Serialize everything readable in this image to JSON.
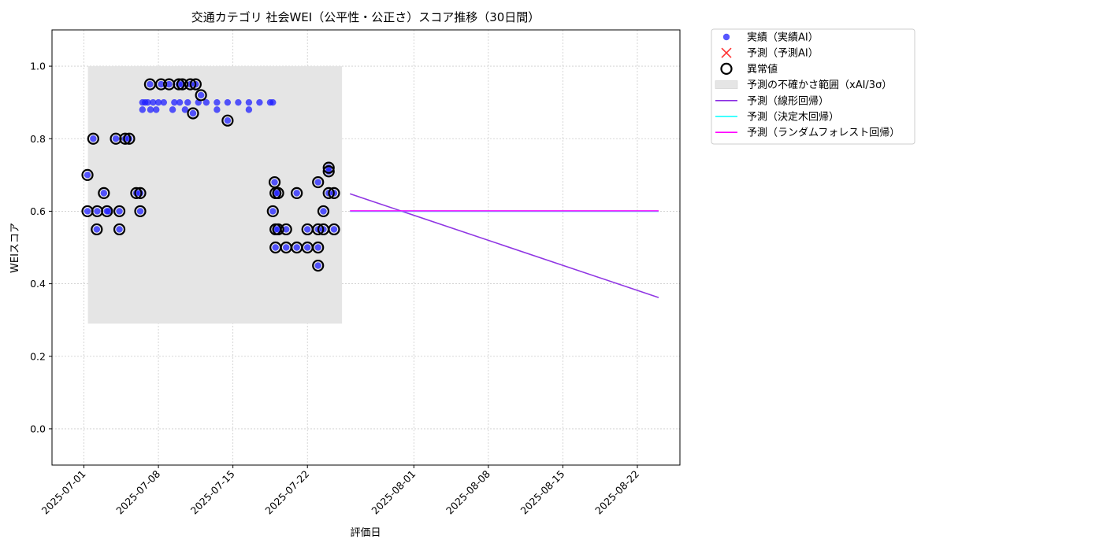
{
  "chart_data": {
    "type": "scatter",
    "title": "交通カテゴリ 社会WEI（公平性・公正さ）スコア推移（30日間）",
    "xlabel": "評価日",
    "ylabel": "WEIスコア",
    "xlim": [
      "2025-06-28",
      "2025-08-26"
    ],
    "ylim": [
      -0.1,
      1.1
    ],
    "x_ticks": [
      "2025-07-01",
      "2025-07-08",
      "2025-07-15",
      "2025-07-22",
      "2025-08-01",
      "2025-08-08",
      "2025-08-15",
      "2025-08-22"
    ],
    "y_ticks": [
      0.0,
      0.2,
      0.4,
      0.6,
      0.8,
      1.0
    ],
    "y_tick_labels": [
      "0.0",
      "0.2",
      "0.4",
      "0.6",
      "0.8",
      "1.0"
    ],
    "grid": true,
    "legend_position": "outside-top-right",
    "legend": [
      {
        "key": "actual",
        "label": "実績（実績AI）"
      },
      {
        "key": "predicted",
        "label": "予測（予測AI）"
      },
      {
        "key": "anomaly",
        "label": "異常値"
      },
      {
        "key": "band",
        "label": "予測の不確かさ範囲（xAI/3σ）"
      },
      {
        "key": "linear",
        "label": "予測（線形回帰）"
      },
      {
        "key": "tree",
        "label": "予測（決定木回帰）"
      },
      {
        "key": "forest",
        "label": "予測（ランダムフォレスト回帰）"
      }
    ],
    "colors": {
      "actual": "#1f1fff",
      "predicted": "#ff3333",
      "band": "#e5e5e5",
      "linear": "#8a2be2",
      "tree": "#00ffff",
      "forest": "#ff00ff",
      "anomaly_edge": "#000000",
      "axis": "#000000",
      "grid": "#cccccc"
    },
    "uncertainty_band": {
      "x_start": "2025-07-01 09:00",
      "x_end": "2025-07-25 06:00",
      "y_low": 0.29,
      "y_high": 1.0
    },
    "series": [
      {
        "key": "actual",
        "name": "実績（実績AI）",
        "points": [
          [
            "2025-07-01 08:00",
            0.7
          ],
          [
            "2025-07-01 08:00",
            0.6
          ],
          [
            "2025-07-01 21:00",
            0.8
          ],
          [
            "2025-07-02 05:00",
            0.55
          ],
          [
            "2025-07-02 06:00",
            0.6
          ],
          [
            "2025-07-02 21:00",
            0.65
          ],
          [
            "2025-07-03 04:00",
            0.6
          ],
          [
            "2025-07-03 07:00",
            0.6
          ],
          [
            "2025-07-04 00:00",
            0.8
          ],
          [
            "2025-07-04 08:00",
            0.55
          ],
          [
            "2025-07-04 08:00",
            0.6
          ],
          [
            "2025-07-04 21:00",
            0.8
          ],
          [
            "2025-07-05 06:00",
            0.8
          ],
          [
            "2025-07-05 22:00",
            0.65
          ],
          [
            "2025-07-06 07:00",
            0.65
          ],
          [
            "2025-07-06 07:00",
            0.6
          ],
          [
            "2025-07-06 12:00",
            0.88
          ],
          [
            "2025-07-06 12:00",
            0.9
          ],
          [
            "2025-07-06 18:00",
            0.9
          ],
          [
            "2025-07-07 00:00",
            0.9
          ],
          [
            "2025-07-07 05:00",
            0.95
          ],
          [
            "2025-07-07 06:00",
            0.88
          ],
          [
            "2025-07-07 12:00",
            0.9
          ],
          [
            "2025-07-07 19:00",
            0.88
          ],
          [
            "2025-07-08 00:00",
            0.9
          ],
          [
            "2025-07-08 06:00",
            0.95
          ],
          [
            "2025-07-08 12:00",
            0.9
          ],
          [
            "2025-07-09 00:00",
            0.95
          ],
          [
            "2025-07-09 08:00",
            0.88
          ],
          [
            "2025-07-09 12:00",
            0.9
          ],
          [
            "2025-07-09 22:00",
            0.95
          ],
          [
            "2025-07-10 00:00",
            0.9
          ],
          [
            "2025-07-10 06:00",
            0.95
          ],
          [
            "2025-07-10 12:00",
            0.88
          ],
          [
            "2025-07-10 18:00",
            0.9
          ],
          [
            "2025-07-11 00:00",
            0.95
          ],
          [
            "2025-07-11 06:00",
            0.87
          ],
          [
            "2025-07-11 12:00",
            0.95
          ],
          [
            "2025-07-11 18:00",
            0.9
          ],
          [
            "2025-07-12 00:00",
            0.92
          ],
          [
            "2025-07-12 12:00",
            0.9
          ],
          [
            "2025-07-13 12:00",
            0.88
          ],
          [
            "2025-07-13 12:00",
            0.9
          ],
          [
            "2025-07-14 12:00",
            0.85
          ],
          [
            "2025-07-14 12:00",
            0.9
          ],
          [
            "2025-07-15 12:00",
            0.9
          ],
          [
            "2025-07-16 12:00",
            0.9
          ],
          [
            "2025-07-16 12:00",
            0.88
          ],
          [
            "2025-07-17 12:00",
            0.9
          ],
          [
            "2025-07-18 12:00",
            0.9
          ],
          [
            "2025-07-18 18:00",
            0.9
          ],
          [
            "2025-07-18 18:00",
            0.6
          ],
          [
            "2025-07-18 22:00",
            0.68
          ],
          [
            "2025-07-19 00:00",
            0.65
          ],
          [
            "2025-07-19 00:00",
            0.55
          ],
          [
            "2025-07-19 00:00",
            0.5
          ],
          [
            "2025-07-19 06:00",
            0.65
          ],
          [
            "2025-07-19 06:00",
            0.55
          ],
          [
            "2025-07-20 00:00",
            0.55
          ],
          [
            "2025-07-20 00:00",
            0.5
          ],
          [
            "2025-07-21 00:00",
            0.65
          ],
          [
            "2025-07-21 00:00",
            0.5
          ],
          [
            "2025-07-22 00:00",
            0.55
          ],
          [
            "2025-07-22 00:00",
            0.5
          ],
          [
            "2025-07-23 00:00",
            0.68
          ],
          [
            "2025-07-23 00:00",
            0.55
          ],
          [
            "2025-07-23 00:00",
            0.5
          ],
          [
            "2025-07-23 00:00",
            0.45
          ],
          [
            "2025-07-23 12:00",
            0.6
          ],
          [
            "2025-07-23 12:00",
            0.55
          ],
          [
            "2025-07-24 00:00",
            0.72
          ],
          [
            "2025-07-24 00:00",
            0.71
          ],
          [
            "2025-07-24 00:00",
            0.65
          ],
          [
            "2025-07-24 12:00",
            0.65
          ],
          [
            "2025-07-24 12:00",
            0.55
          ]
        ]
      },
      {
        "key": "anomaly",
        "name": "異常値",
        "points": [
          [
            "2025-07-01 08:00",
            0.7
          ],
          [
            "2025-07-01 08:00",
            0.6
          ],
          [
            "2025-07-01 21:00",
            0.8
          ],
          [
            "2025-07-02 05:00",
            0.55
          ],
          [
            "2025-07-02 06:00",
            0.6
          ],
          [
            "2025-07-02 21:00",
            0.65
          ],
          [
            "2025-07-03 04:00",
            0.6
          ],
          [
            "2025-07-04 00:00",
            0.8
          ],
          [
            "2025-07-04 08:00",
            0.55
          ],
          [
            "2025-07-04 08:00",
            0.6
          ],
          [
            "2025-07-04 21:00",
            0.8
          ],
          [
            "2025-07-05 06:00",
            0.8
          ],
          [
            "2025-07-05 22:00",
            0.65
          ],
          [
            "2025-07-06 07:00",
            0.65
          ],
          [
            "2025-07-06 07:00",
            0.6
          ],
          [
            "2025-07-07 05:00",
            0.95
          ],
          [
            "2025-07-08 06:00",
            0.95
          ],
          [
            "2025-07-09 00:00",
            0.95
          ],
          [
            "2025-07-09 22:00",
            0.95
          ],
          [
            "2025-07-10 06:00",
            0.95
          ],
          [
            "2025-07-11 00:00",
            0.95
          ],
          [
            "2025-07-11 06:00",
            0.87
          ],
          [
            "2025-07-11 12:00",
            0.95
          ],
          [
            "2025-07-12 00:00",
            0.92
          ],
          [
            "2025-07-14 12:00",
            0.85
          ],
          [
            "2025-07-18 18:00",
            0.6
          ],
          [
            "2025-07-18 22:00",
            0.68
          ],
          [
            "2025-07-19 00:00",
            0.65
          ],
          [
            "2025-07-19 00:00",
            0.55
          ],
          [
            "2025-07-19 00:00",
            0.5
          ],
          [
            "2025-07-19 06:00",
            0.65
          ],
          [
            "2025-07-19 06:00",
            0.55
          ],
          [
            "2025-07-20 00:00",
            0.55
          ],
          [
            "2025-07-20 00:00",
            0.5
          ],
          [
            "2025-07-21 00:00",
            0.65
          ],
          [
            "2025-07-21 00:00",
            0.5
          ],
          [
            "2025-07-22 00:00",
            0.55
          ],
          [
            "2025-07-22 00:00",
            0.5
          ],
          [
            "2025-07-23 00:00",
            0.68
          ],
          [
            "2025-07-23 00:00",
            0.55
          ],
          [
            "2025-07-23 00:00",
            0.5
          ],
          [
            "2025-07-23 00:00",
            0.45
          ],
          [
            "2025-07-23 12:00",
            0.6
          ],
          [
            "2025-07-23 12:00",
            0.55
          ],
          [
            "2025-07-24 00:00",
            0.72
          ],
          [
            "2025-07-24 00:00",
            0.71
          ],
          [
            "2025-07-24 00:00",
            0.65
          ],
          [
            "2025-07-24 12:00",
            0.65
          ],
          [
            "2025-07-24 12:00",
            0.55
          ]
        ]
      },
      {
        "key": "linear",
        "name": "予測（線形回帰）",
        "points": [
          [
            "2025-07-26 00:00",
            0.648
          ],
          [
            "2025-08-24 00:00",
            0.362
          ]
        ]
      },
      {
        "key": "tree",
        "name": "予測（決定木回帰）",
        "points": [
          [
            "2025-07-26 00:00",
            0.6
          ],
          [
            "2025-08-24 00:00",
            0.6
          ]
        ]
      },
      {
        "key": "forest",
        "name": "予測（ランダムフォレスト回帰）",
        "points": [
          [
            "2025-07-26 00:00",
            0.601
          ],
          [
            "2025-08-24 00:00",
            0.601
          ]
        ]
      }
    ]
  }
}
